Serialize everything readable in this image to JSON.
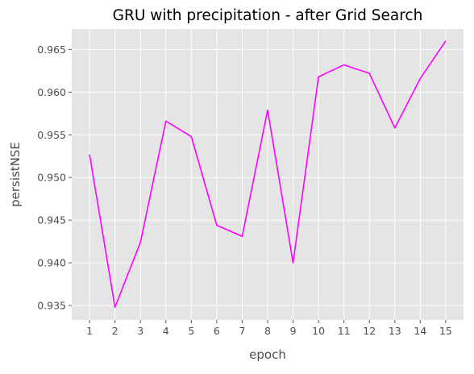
{
  "chart_data": {
    "type": "line",
    "title": "GRU with precipitation - after Grid Search",
    "xlabel": "epoch",
    "ylabel": "persistNSE",
    "x": [
      1,
      2,
      3,
      4,
      5,
      6,
      7,
      8,
      9,
      10,
      11,
      12,
      13,
      14,
      15
    ],
    "series": [
      {
        "values": [
          0.9527,
          0.9348,
          0.9424,
          0.9566,
          0.9548,
          0.9444,
          0.9431,
          0.9579,
          0.94,
          0.9618,
          0.9632,
          0.9622,
          0.9558,
          0.9616,
          0.966
        ],
        "color": "#ff00ff"
      }
    ],
    "xticks": [
      "1",
      "2",
      "3",
      "4",
      "5",
      "6",
      "7",
      "8",
      "9",
      "10",
      "11",
      "12",
      "13",
      "14",
      "15"
    ],
    "yticks": [
      0.935,
      0.94,
      0.945,
      0.95,
      0.955,
      0.96,
      0.965
    ],
    "ytick_labels": [
      "0.935",
      "0.940",
      "0.945",
      "0.950",
      "0.955",
      "0.960",
      "0.965"
    ],
    "xlim": [
      0.3,
      15.7
    ],
    "ylim": [
      0.9333,
      0.9674
    ],
    "grid": true,
    "style": "ggplot",
    "colors": {
      "plot_background": "#e5e5e5",
      "grid": "#ffffff",
      "tick_text": "#4d4d4d",
      "title_text": "#000000"
    }
  }
}
